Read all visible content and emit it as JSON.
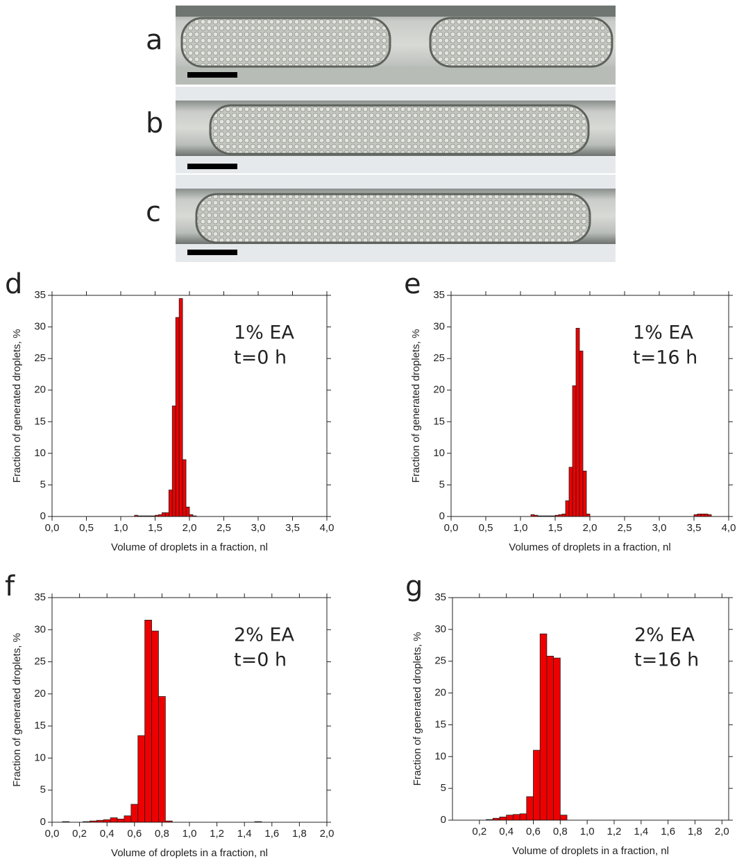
{
  "photos": [
    {
      "label": "a"
    },
    {
      "label": "b"
    },
    {
      "label": "c"
    }
  ],
  "chart_data": [
    {
      "type": "histogram",
      "panel": "d",
      "xlabel": "Volume of droplets in a fraction, nl",
      "ylabel": "Fraction of generated droplets, %",
      "annotations": [
        "1% EA",
        "t=0 h"
      ],
      "color": "#ee0000",
      "bins": [
        1.2,
        1.25,
        1.3,
        1.35,
        1.4,
        1.45,
        1.5,
        1.55,
        1.6,
        1.65,
        1.7,
        1.75,
        1.8,
        1.85,
        1.9,
        1.95,
        2.0,
        2.05,
        2.1
      ],
      "values": [
        0.2,
        0.1,
        0.1,
        0.1,
        0.1,
        0.1,
        0.2,
        0.3,
        0.6,
        0.6,
        4.2,
        17.5,
        31.5,
        34.5,
        9,
        1.5,
        0.3,
        0.1
      ],
      "xlim": [
        0,
        4
      ],
      "ylim": [
        0,
        35
      ],
      "xticks": [
        {
          "value": 0,
          "label": "0,0"
        },
        {
          "value": 0.5,
          "label": "0,5"
        },
        {
          "value": 1,
          "label": "1,0"
        },
        {
          "value": 1.5,
          "label": "1,5"
        },
        {
          "value": 2,
          "label": "2,0"
        },
        {
          "value": 2.5,
          "label": "2,5"
        },
        {
          "value": 3,
          "label": "3,0"
        },
        {
          "value": 3.5,
          "label": "3,5"
        },
        {
          "value": 4,
          "label": "4,0"
        }
      ],
      "yticks": [
        0,
        5,
        10,
        15,
        20,
        25,
        30,
        35
      ]
    },
    {
      "type": "histogram",
      "panel": "e",
      "xlabel": "Volumes of droplets in a fraction, nl",
      "ylabel": "Fraction of generated droplets, %",
      "annotations": [
        "1% EA",
        "t=16 h"
      ],
      "color": "#ee0000",
      "bins": [
        1.15,
        1.2,
        1.25,
        1.3,
        1.35,
        1.4,
        1.45,
        1.5,
        1.55,
        1.6,
        1.65,
        1.7,
        1.75,
        1.8,
        1.85,
        1.9,
        1.95,
        2.0,
        3.5,
        3.55,
        3.6,
        3.65,
        3.7,
        3.75
      ],
      "values": [
        0.3,
        0.2,
        0.1,
        0.1,
        0.1,
        0.1,
        0.1,
        0.2,
        0.3,
        0.4,
        2.5,
        7.8,
        20.7,
        29.8,
        26.2,
        7.2,
        0.4,
        0,
        0.3,
        0.4,
        0.4,
        0.4,
        0.3
      ],
      "xlim": [
        0,
        4
      ],
      "ylim": [
        0,
        35
      ],
      "xticks": [
        {
          "value": 0,
          "label": "0,0"
        },
        {
          "value": 0.5,
          "label": "0,5"
        },
        {
          "value": 1,
          "label": "1,0"
        },
        {
          "value": 1.5,
          "label": "1,5"
        },
        {
          "value": 2,
          "label": "2,0"
        },
        {
          "value": 2.5,
          "label": "2,5"
        },
        {
          "value": 3,
          "label": "3,0"
        },
        {
          "value": 3.5,
          "label": "3,5"
        },
        {
          "value": 4,
          "label": "4,0"
        }
      ],
      "yticks": [
        0,
        5,
        10,
        15,
        20,
        25,
        30,
        35
      ]
    },
    {
      "type": "histogram",
      "panel": "f",
      "xlabel": "Volume of droplets in a fraction, nl",
      "ylabel": "Fraction of generated droplets, %",
      "annotations": [
        "2% EA",
        "t=0 h"
      ],
      "color": "#ee0000",
      "bins": [
        0.025,
        0.075,
        0.125,
        0.175,
        0.225,
        0.275,
        0.325,
        0.375,
        0.425,
        0.475,
        0.525,
        0.575,
        0.625,
        0.675,
        0.725,
        0.775,
        0.825,
        0.875,
        1.475,
        1.525
      ],
      "values": [
        0,
        0.1,
        0,
        0,
        0.1,
        0.2,
        0.3,
        0.4,
        0.7,
        0.5,
        1.0,
        2.8,
        13.5,
        31.5,
        29.8,
        19.6,
        0.2,
        0,
        0.1
      ],
      "xlim": [
        0,
        2
      ],
      "ylim": [
        0,
        35
      ],
      "xticks": [
        {
          "value": 0,
          "label": "0,0"
        },
        {
          "value": 0.2,
          "label": "0,2"
        },
        {
          "value": 0.4,
          "label": "0,4"
        },
        {
          "value": 0.6,
          "label": "0,6"
        },
        {
          "value": 0.8,
          "label": "0,8"
        },
        {
          "value": 1,
          "label": "1,0"
        },
        {
          "value": 1.2,
          "label": "1,2"
        },
        {
          "value": 1.4,
          "label": "1,4"
        },
        {
          "value": 1.6,
          "label": "1,6"
        },
        {
          "value": 1.8,
          "label": "1,8"
        },
        {
          "value": 2,
          "label": "2,0"
        }
      ],
      "yticks": [
        0,
        5,
        10,
        15,
        20,
        25,
        30,
        35
      ]
    },
    {
      "type": "histogram",
      "panel": "g",
      "xlabel": "Volume of droplets in a fraction, nl",
      "ylabel": "Fraction of generated droplets, %",
      "annotations": [
        "2% EA",
        "t=16 h"
      ],
      "color": "#ee0000",
      "bins": [
        0.25,
        0.3,
        0.35,
        0.4,
        0.45,
        0.5,
        0.55,
        0.6,
        0.65,
        0.7,
        0.75,
        0.8,
        0.85
      ],
      "values": [
        0.1,
        0.3,
        0.5,
        0.8,
        0.9,
        1.0,
        3.7,
        11,
        29.3,
        25.8,
        25.5,
        0.8
      ],
      "xlim": [
        0,
        2.05
      ],
      "ylim": [
        0,
        35
      ],
      "xticks": [
        {
          "value": 0.2,
          "label": "0,2"
        },
        {
          "value": 0.4,
          "label": "0,4"
        },
        {
          "value": 0.6,
          "label": "0,6"
        },
        {
          "value": 0.8,
          "label": "0,8"
        },
        {
          "value": 1,
          "label": "1,0"
        },
        {
          "value": 1.2,
          "label": "1,2"
        },
        {
          "value": 1.4,
          "label": "1,4"
        },
        {
          "value": 1.6,
          "label": "1,6"
        },
        {
          "value": 1.8,
          "label": "1,8"
        },
        {
          "value": 2,
          "label": "2,0"
        }
      ],
      "yticks": [
        0,
        5,
        10,
        15,
        20,
        25,
        30,
        35
      ]
    }
  ]
}
